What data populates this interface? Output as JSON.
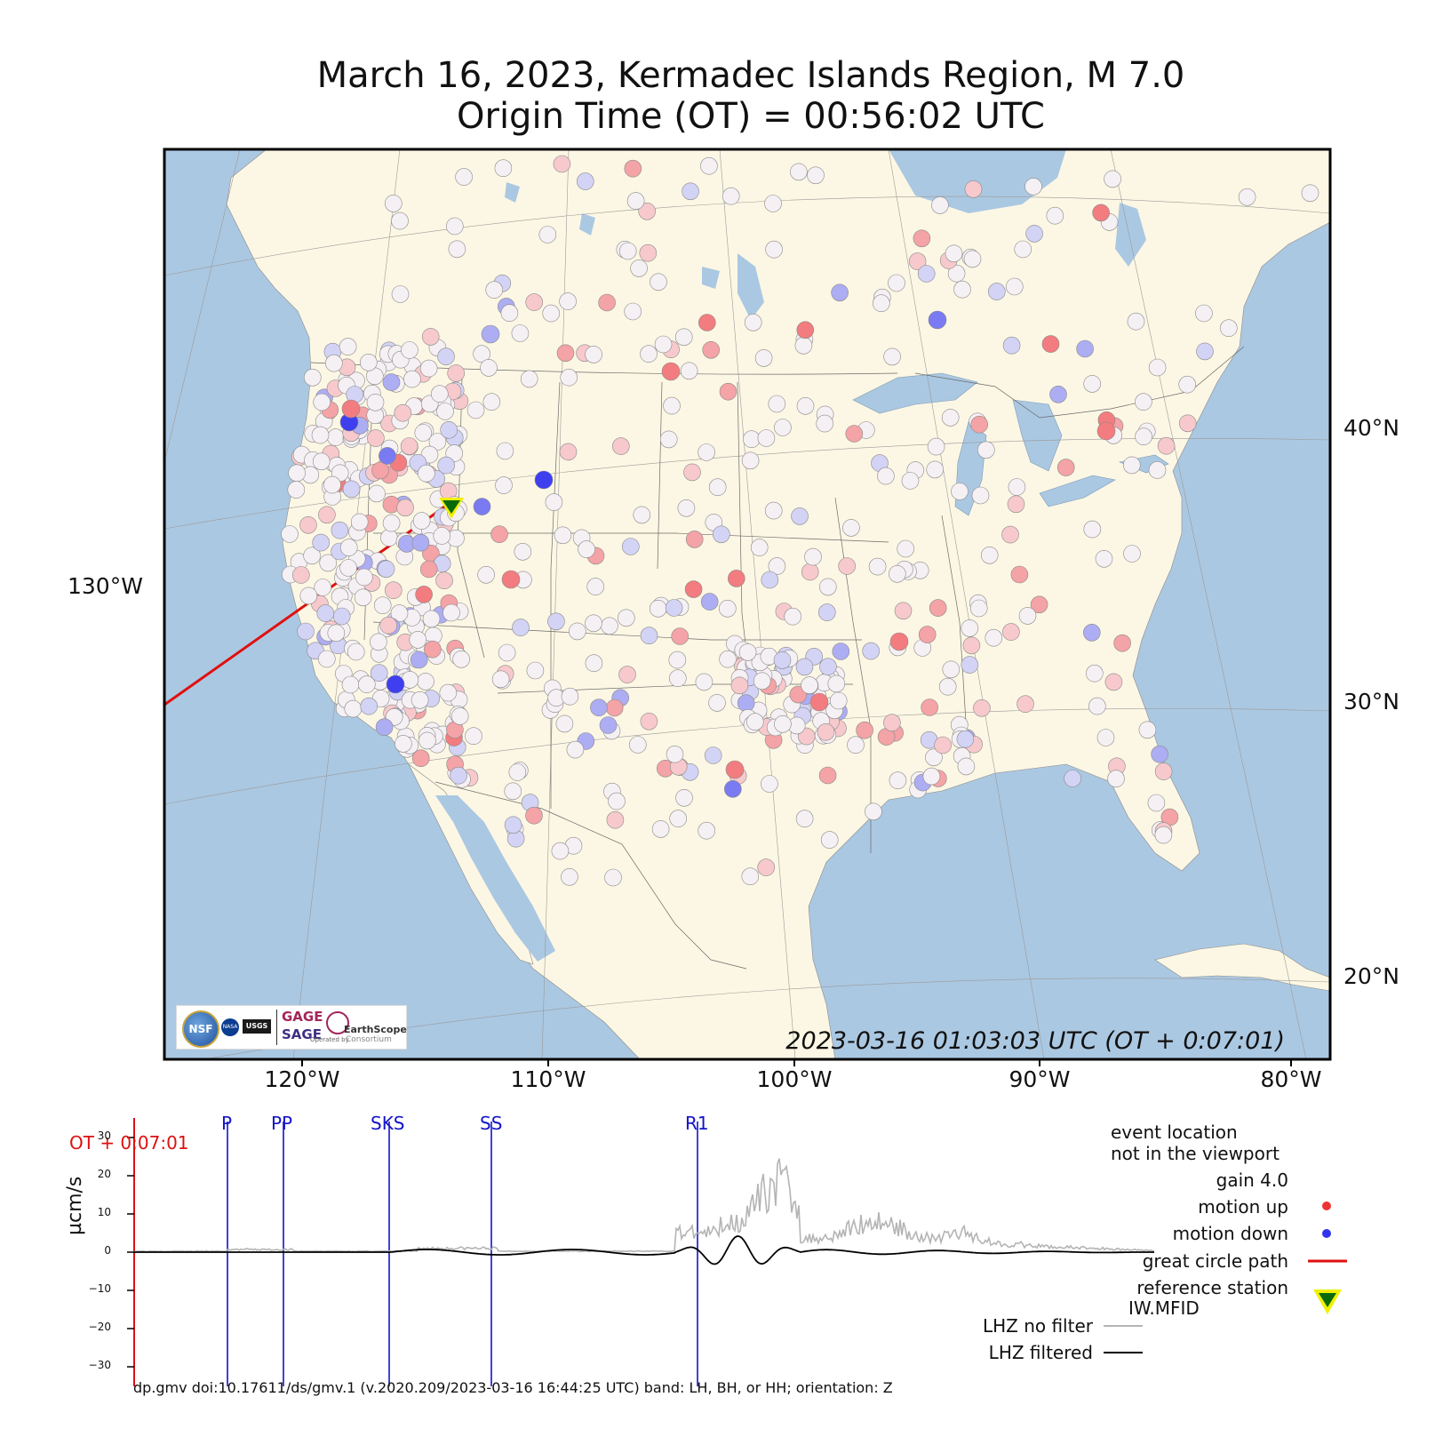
{
  "title": {
    "line1": "March 16, 2023, Kermadec Islands Region, M 7.0",
    "line2": "Origin Time (OT) = 00:56:02 UTC"
  },
  "map": {
    "timestamp": "2023-03-16 01:03:03 UTC (OT + 0:07:01)",
    "lat_labels": [
      "40°N",
      "30°N",
      "20°N"
    ],
    "lon_labels": [
      "120°W",
      "110°W",
      "100°W",
      "90°W",
      "80°W"
    ],
    "lon_left_label": "130°W",
    "colors": {
      "ocean": "#abc8e2",
      "land": "#fcf7e4",
      "up": "#f17f7f",
      "down": "#3f3ff0",
      "path": "#e01010"
    },
    "logos": {
      "nsf": "NSF",
      "nasa": "NASA",
      "usgs": "USGS",
      "gage": "GAGE",
      "sage": "SAGE",
      "earthscope": "EarthScope",
      "operated_by": "Operated by",
      "consortium": "Consortium"
    }
  },
  "legend": {
    "event_note_1": "event location",
    "event_note_2": "not in the viewport",
    "gain": "gain  4.0",
    "motion_up": "motion up",
    "motion_down": "motion down",
    "great_circle": "great circle path",
    "ref_station_1": "reference station",
    "ref_station_2": "IW.MFID",
    "no_filter": "LHZ no filter",
    "filtered": "LHZ filtered"
  },
  "seismogram": {
    "ylabel": "µcm/s",
    "ot_marker": "OT + 0:07:01",
    "yticks": [
      "30",
      "20",
      "10",
      "0",
      "−10",
      "−20",
      "−30"
    ],
    "phases": [
      "P",
      "PP",
      "SKS",
      "SS",
      "R1"
    ]
  },
  "footer": "dp.gmv doi:10.17611/ds/gmv.1 (v.2020.209/2023-03-16 16:44:25 UTC) band: LH, BH, or HH; orientation: Z"
}
